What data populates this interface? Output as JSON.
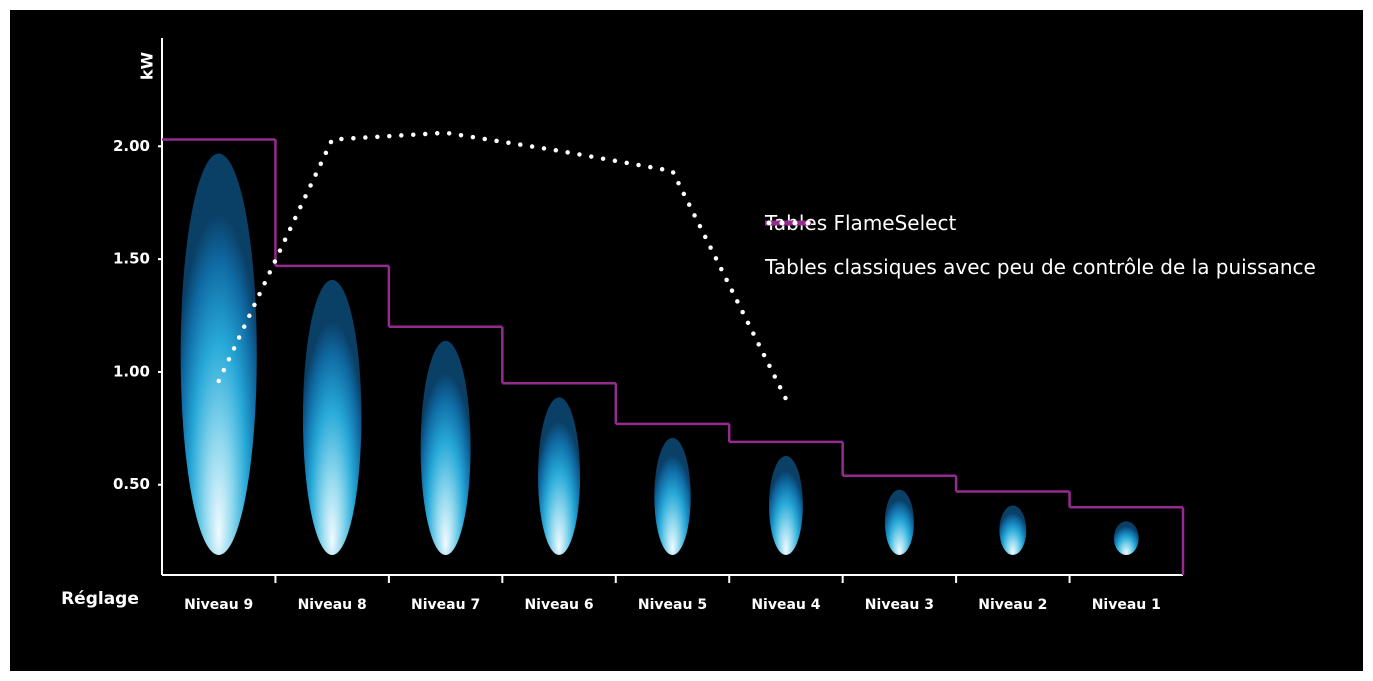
{
  "chart_data": {
    "type": "line",
    "y_label": "kW",
    "x_label": "Réglage",
    "categories": [
      "Niveau 9",
      "Niveau 8",
      "Niveau 7",
      "Niveau 6",
      "Niveau 5",
      "Niveau 4",
      "Niveau 3",
      "Niveau 2",
      "Niveau 1"
    ],
    "series": [
      {
        "name": "Tables FlameSelect",
        "color": "#952a8f",
        "style": "step",
        "values": [
          2.03,
          1.47,
          1.2,
          0.95,
          0.77,
          0.69,
          0.54,
          0.47,
          0.4
        ]
      },
      {
        "name": "Tables classiques avec peu de contrôle de la puissance",
        "color": "#ffffff",
        "style": "dotted",
        "values": [
          0.96,
          2.03,
          2.06,
          1.98,
          1.89,
          0.88,
          null,
          null,
          null
        ]
      }
    ],
    "ylim": [
      0.1,
      2.48
    ],
    "yticks": [
      {
        "value": 0.5,
        "label": "0.50"
      },
      {
        "value": 1,
        "label": "1.00"
      },
      {
        "value": 1.5,
        "label": "1.50"
      },
      {
        "value": 2,
        "label": "2.00"
      }
    ]
  }
}
